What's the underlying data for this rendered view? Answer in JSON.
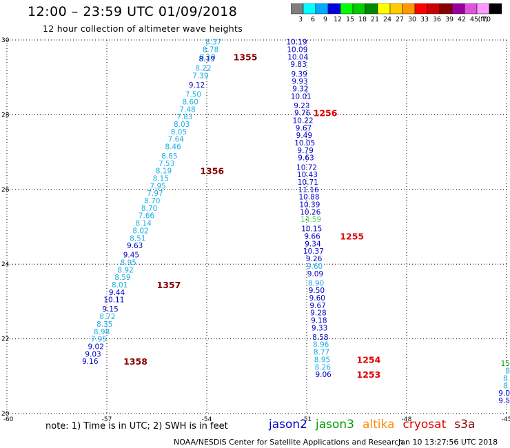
{
  "header": {
    "title": "12:00 – 23:59 UTC 01/09/2018",
    "subtitle": "12 hour collection of altimeter wave heights"
  },
  "colorbar": {
    "unit_label": "(ft)",
    "levels": [
      {
        "label": "3",
        "color": "#7f7f7f"
      },
      {
        "label": "6",
        "color": "#00ffff"
      },
      {
        "label": "9",
        "color": "#00aaff"
      },
      {
        "label": "12",
        "color": "#0000dd"
      },
      {
        "label": "15",
        "color": "#00ff00"
      },
      {
        "label": "18",
        "color": "#00cc00"
      },
      {
        "label": "21",
        "color": "#008800"
      },
      {
        "label": "24",
        "color": "#ffff00"
      },
      {
        "label": "27",
        "color": "#ffcc00"
      },
      {
        "label": "30",
        "color": "#ff9900"
      },
      {
        "label": "33",
        "color": "#ff0000"
      },
      {
        "label": "36",
        "color": "#cc0000"
      },
      {
        "label": "39",
        "color": "#880000"
      },
      {
        "label": "42",
        "color": "#990099"
      },
      {
        "label": "45",
        "color": "#dd55dd"
      },
      {
        "label": "70",
        "color": "#ff99ff"
      },
      {
        "label": "",
        "color": "#000000"
      }
    ]
  },
  "map": {
    "lon_range": [
      -60,
      -45
    ],
    "lat_range": [
      20,
      30
    ],
    "lon_ticks": [
      "-60",
      "-57",
      "-54",
      "-51",
      "-48",
      "-45"
    ],
    "lat_ticks": [
      "20",
      "22",
      "24",
      "26",
      "28",
      "30"
    ],
    "grid": true
  },
  "colors": {
    "jason2": "#0000cc",
    "jason3": "#009900",
    "altika": "#ff8800",
    "cryosat": "#dd0000",
    "s3a": "#880000",
    "sky": "#1aaee6",
    "light_green": "#55dd55"
  },
  "tracks": [
    {
      "id": "track-1",
      "values": [
        "8.37",
        "8.78",
        "8.19",
        "8.19",
        "8.22",
        "7.39",
        "9.12",
        "7.50",
        "8.60",
        "7.48",
        "7.83",
        "8.03",
        "8.05",
        "7.64",
        "8.46",
        "8.85",
        "7.53",
        "8.19",
        "8.15",
        "7.95",
        "7.97",
        "8.70",
        "8.70",
        "7.66",
        "8.14",
        "8.02",
        "8.51",
        "9.63",
        "9.45",
        "8.95",
        "8.92",
        "8.59",
        "8.01",
        "9.44",
        "10.11",
        "9.15",
        "8.72",
        "8.35",
        "8.98",
        "7.95",
        "9.02",
        "9.03",
        "9.16"
      ],
      "lats": [
        29.95,
        29.75,
        29.55,
        29.5,
        29.25,
        29.05,
        28.8,
        28.55,
        28.35,
        28.15,
        27.95,
        27.75,
        27.55,
        27.35,
        27.15,
        26.9,
        26.7,
        26.5,
        26.3,
        26.1,
        25.9,
        25.7,
        25.5,
        25.3,
        25.1,
        24.9,
        24.7,
        24.5,
        24.25,
        24.05,
        23.85,
        23.65,
        23.45,
        23.25,
        23.05,
        22.8,
        22.6,
        22.4,
        22.2,
        22.0,
        21.8,
        21.6,
        21.4
      ],
      "lon_top": -53.8,
      "lon_bottom": -57.5,
      "colors": [
        "sky",
        "sky",
        "sky",
        "jason2",
        "sky",
        "sky",
        "jason2",
        "sky",
        "sky",
        "sky",
        "sky",
        "sky",
        "sky",
        "sky",
        "sky",
        "sky",
        "sky",
        "sky",
        "sky",
        "sky",
        "sky",
        "sky",
        "sky",
        "sky",
        "sky",
        "sky",
        "sky",
        "jason2",
        "jason2",
        "sky",
        "sky",
        "sky",
        "sky",
        "jason2",
        "jason2",
        "jason2",
        "sky",
        "sky",
        "sky",
        "sky",
        "jason2",
        "jason2",
        "jason2"
      ]
    },
    {
      "id": "track-2",
      "values": [
        "10.19",
        "10.09",
        "10.04",
        "9.83",
        "9.39",
        "9.93",
        "9.32",
        "10.01",
        "9.23",
        "9.76",
        "10.22",
        "9.67",
        "9.49",
        "10.05",
        "9.79",
        "9.63",
        "10.72",
        "10.43",
        "10.71",
        "11.16",
        "10.88",
        "10.39",
        "10.26",
        "14.59",
        "10.15",
        "9.66",
        "9.34",
        "10.37",
        "9.26",
        "9.60",
        "9.09",
        "8.90",
        "9.50",
        "9.60",
        "9.67",
        "9.28",
        "9.18",
        "9.33",
        "8.58",
        "8.96",
        "8.77",
        "8.95",
        "8.26",
        "9.06"
      ],
      "lats": [
        29.95,
        29.75,
        29.55,
        29.35,
        29.1,
        28.9,
        28.7,
        28.5,
        28.25,
        28.05,
        27.85,
        27.65,
        27.45,
        27.25,
        27.05,
        26.85,
        26.6,
        26.4,
        26.2,
        26.0,
        25.8,
        25.6,
        25.4,
        25.2,
        24.95,
        24.75,
        24.55,
        24.35,
        24.15,
        23.95,
        23.75,
        23.5,
        23.3,
        23.1,
        22.9,
        22.7,
        22.5,
        22.3,
        22.05,
        21.85,
        21.65,
        21.45,
        21.25,
        21.05
      ],
      "lon_top": -51.3,
      "lon_bottom": -50.5,
      "colors": [
        "jason2",
        "jason2",
        "jason2",
        "jason2",
        "jason2",
        "jason2",
        "jason2",
        "jason2",
        "jason2",
        "jason2",
        "jason2",
        "jason2",
        "jason2",
        "jason2",
        "jason2",
        "jason2",
        "jason2",
        "jason2",
        "jason2",
        "jason2",
        "jason2",
        "jason2",
        "jason2",
        "light_green",
        "jason2",
        "jason2",
        "jason2",
        "jason2",
        "jason2",
        "sky",
        "jason2",
        "sky",
        "jason2",
        "jason2",
        "jason2",
        "jason2",
        "jason2",
        "jason2",
        "jason2",
        "sky",
        "sky",
        "sky",
        "sky",
        "jason2"
      ]
    }
  ],
  "edge_values": [
    {
      "text": "15",
      "color": "jason3"
    },
    {
      "text": "8",
      "color": "sky"
    },
    {
      "text": "8.",
      "color": "sky"
    },
    {
      "text": "8.",
      "color": "sky"
    },
    {
      "text": "9.0",
      "color": "jason2"
    },
    {
      "text": "9.5",
      "color": "jason2"
    }
  ],
  "time_labels": [
    {
      "text": "1355",
      "color": "s3a",
      "lat": 29.55,
      "lon": -53.2
    },
    {
      "text": "1356",
      "color": "s3a",
      "lat": 26.5,
      "lon": -54.2
    },
    {
      "text": "1357",
      "color": "s3a",
      "lat": 23.45,
      "lon": -55.5
    },
    {
      "text": "1358",
      "color": "s3a",
      "lat": 21.4,
      "lon": -56.5
    },
    {
      "text": "1256",
      "color": "cryosat",
      "lat": 28.05,
      "lon": -50.8
    },
    {
      "text": "1255",
      "color": "cryosat",
      "lat": 24.75,
      "lon": -50.0
    },
    {
      "text": "1254",
      "color": "cryosat",
      "lat": 21.45,
      "lon": -49.5
    },
    {
      "text": "1253",
      "color": "cryosat",
      "lat": 21.05,
      "lon": -49.5
    }
  ],
  "footer": {
    "note": "note: 1) Time is in UTC; 2) SWH is in feet",
    "missions": [
      {
        "label": "jason2",
        "color": "jason2"
      },
      {
        "label": "jason3",
        "color": "jason3"
      },
      {
        "label": "altika",
        "color": "altika"
      },
      {
        "label": "cryosat",
        "color": "cryosat"
      },
      {
        "label": "s3a",
        "color": "s3a"
      }
    ],
    "credit": "NOAA/NESDIS Center for Satellite Applications and Research",
    "timestamp": "Jan 10 13:27:56 UTC 2018"
  }
}
